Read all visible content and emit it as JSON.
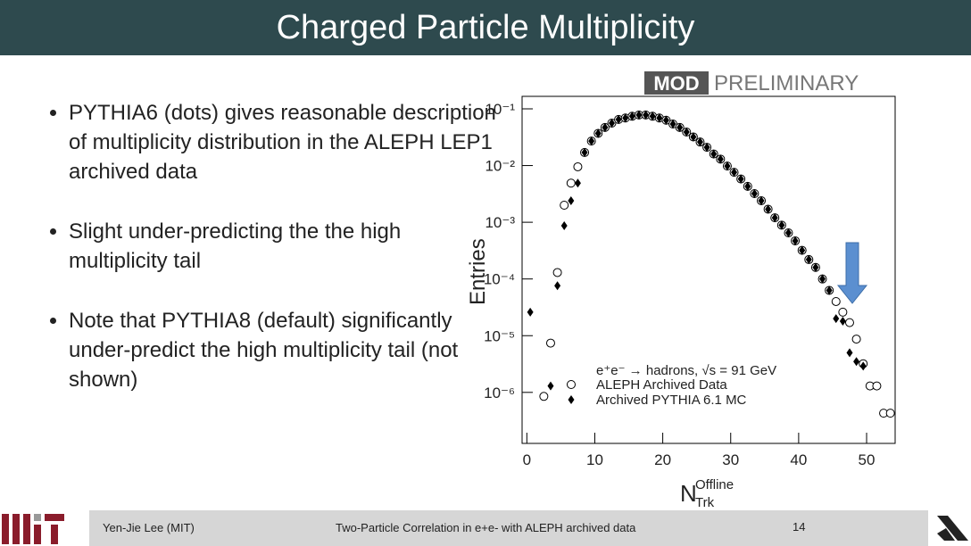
{
  "header": {
    "title": "Charged Particle Multiplicity"
  },
  "bullets": [
    "PYTHIA6 (dots) gives reasonable description of multiplicity distribution in the ALEPH LEP1 archived data",
    "Slight under-predicting the the high multiplicity tail",
    "Note that PYTHIA8 (default) significantly under-predict the high multiplicity tail (not shown)"
  ],
  "badge": {
    "left": "MOD",
    "right": "PRELIMINARY"
  },
  "footer": {
    "author": "Yen-Jie Lee (MIT)",
    "talk": "Two-Particle Correlation in e+e- with ALEPH archived data",
    "page": "14"
  },
  "chart_data": {
    "type": "scatter",
    "log_y": true,
    "ylabel": "Entries",
    "xlabel": {
      "main": "N",
      "sup": "Offline",
      "sub": "Trk"
    },
    "legend_title": "e⁺e⁻ → hadrons, √s = 91 GeV",
    "xlim": [
      -0.7,
      54.2
    ],
    "xticks": [
      0,
      10,
      20,
      30,
      40,
      50
    ],
    "ylim": [
      1.26e-07,
      0.166
    ],
    "yticks": [
      {
        "value": 0.1,
        "label": "10⁻¹"
      },
      {
        "value": 0.01,
        "label": "10⁻²"
      },
      {
        "value": 0.001,
        "label": "10⁻³"
      },
      {
        "value": 0.0001,
        "label": "10⁻⁴"
      },
      {
        "value": 1e-05,
        "label": "10⁻⁵"
      },
      {
        "value": 1e-06,
        "label": "10⁻⁶"
      }
    ],
    "series": [
      {
        "name": "ALEPH Archived Data",
        "marker": "circle",
        "color": "#000000",
        "x": [
          2.5,
          3.5,
          4.5,
          5.5,
          6.5,
          7.5,
          8.5,
          9.5,
          10.5,
          11.5,
          12.5,
          13.5,
          14.5,
          15.5,
          16.5,
          17.5,
          18.5,
          19.5,
          20.5,
          21.5,
          22.5,
          23.5,
          24.5,
          25.5,
          26.5,
          27.5,
          28.5,
          29.5,
          30.5,
          31.5,
          32.5,
          33.5,
          34.5,
          35.5,
          36.5,
          37.5,
          38.5,
          39.5,
          40.5,
          41.5,
          42.5,
          43.5,
          44.5,
          45.5,
          46.5,
          47.5,
          48.5,
          49.5,
          50.5,
          51.5,
          52.5,
          53.5
        ],
        "values": [
          8.5e-07,
          7.4e-06,
          0.00013,
          0.002,
          0.0049,
          0.0095,
          0.017,
          0.027,
          0.037,
          0.047,
          0.056,
          0.065,
          0.069,
          0.074,
          0.078,
          0.078,
          0.074,
          0.069,
          0.063,
          0.054,
          0.047,
          0.039,
          0.032,
          0.026,
          0.021,
          0.016,
          0.013,
          0.0098,
          0.0076,
          0.0058,
          0.0043,
          0.0032,
          0.0024,
          0.0017,
          0.0012,
          0.00089,
          0.00065,
          0.00047,
          0.00032,
          0.00022,
          0.00016,
          0.0001,
          6.3e-05,
          4e-05,
          2.6e-05,
          1.7e-05,
          8.7e-06,
          3.2e-06,
          1.3e-06,
          1.3e-06,
          4.3e-07,
          4.3e-07
        ]
      },
      {
        "name": "Archived PYTHIA 6.1 MC",
        "marker": "diamond",
        "color": "#000000",
        "x": [
          0.5,
          3.5,
          4.5,
          5.5,
          6.5,
          7.5,
          8.5,
          9.5,
          10.5,
          11.5,
          12.5,
          13.5,
          14.5,
          15.5,
          16.5,
          17.5,
          18.5,
          19.5,
          20.5,
          21.5,
          22.5,
          23.5,
          24.5,
          25.5,
          26.5,
          27.5,
          28.5,
          29.5,
          30.5,
          31.5,
          32.5,
          33.5,
          34.5,
          35.5,
          36.5,
          37.5,
          38.5,
          39.5,
          40.5,
          41.5,
          42.5,
          43.5,
          44.5,
          45.5,
          46.5,
          47.5,
          48.5,
          49.5
        ],
        "values": [
          2.6e-05,
          1.3e-06,
          7.6e-05,
          0.00087,
          0.0024,
          0.0049,
          0.017,
          0.027,
          0.037,
          0.047,
          0.056,
          0.065,
          0.069,
          0.074,
          0.078,
          0.078,
          0.074,
          0.069,
          0.063,
          0.054,
          0.047,
          0.039,
          0.032,
          0.026,
          0.021,
          0.016,
          0.013,
          0.0098,
          0.0076,
          0.0058,
          0.0043,
          0.0032,
          0.0024,
          0.0017,
          0.0012,
          0.00089,
          0.00065,
          0.00047,
          0.00032,
          0.00022,
          0.00016,
          0.0001,
          6.3e-05,
          2e-05,
          1.8e-05,
          5e-06,
          3.5e-06,
          2.9e-06
        ]
      }
    ]
  }
}
